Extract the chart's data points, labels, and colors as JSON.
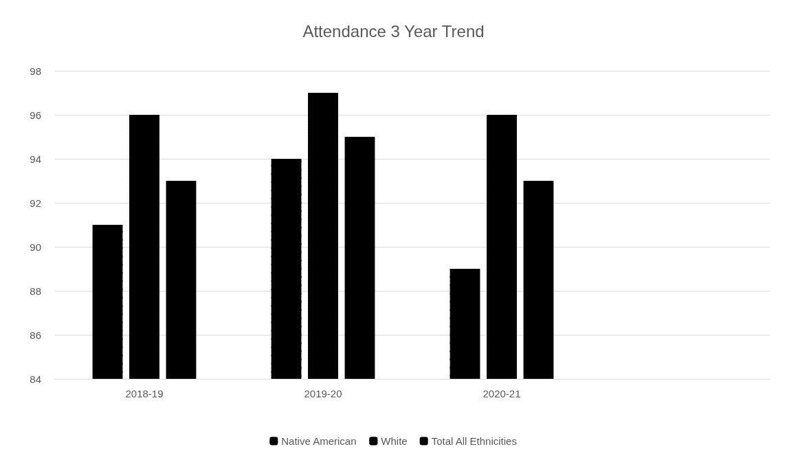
{
  "chart_data": {
    "type": "bar",
    "title": "Attendance 3 Year Trend",
    "categories": [
      "2018-19",
      "2019-20",
      "2020-21",
      null
    ],
    "series": [
      {
        "name": "Native American",
        "color": "#000000",
        "values": [
          91,
          94,
          89,
          null
        ]
      },
      {
        "name": "White",
        "color": "#000000",
        "values": [
          96,
          97,
          96,
          null
        ]
      },
      {
        "name": "Total All Ethnicities",
        "color": "#000000",
        "values": [
          93,
          95,
          93,
          null
        ]
      }
    ],
    "ylim": [
      84,
      98
    ],
    "yticks": [
      84,
      86,
      88,
      90,
      92,
      94,
      96,
      98
    ],
    "grid": "y",
    "legend": "bottom"
  }
}
